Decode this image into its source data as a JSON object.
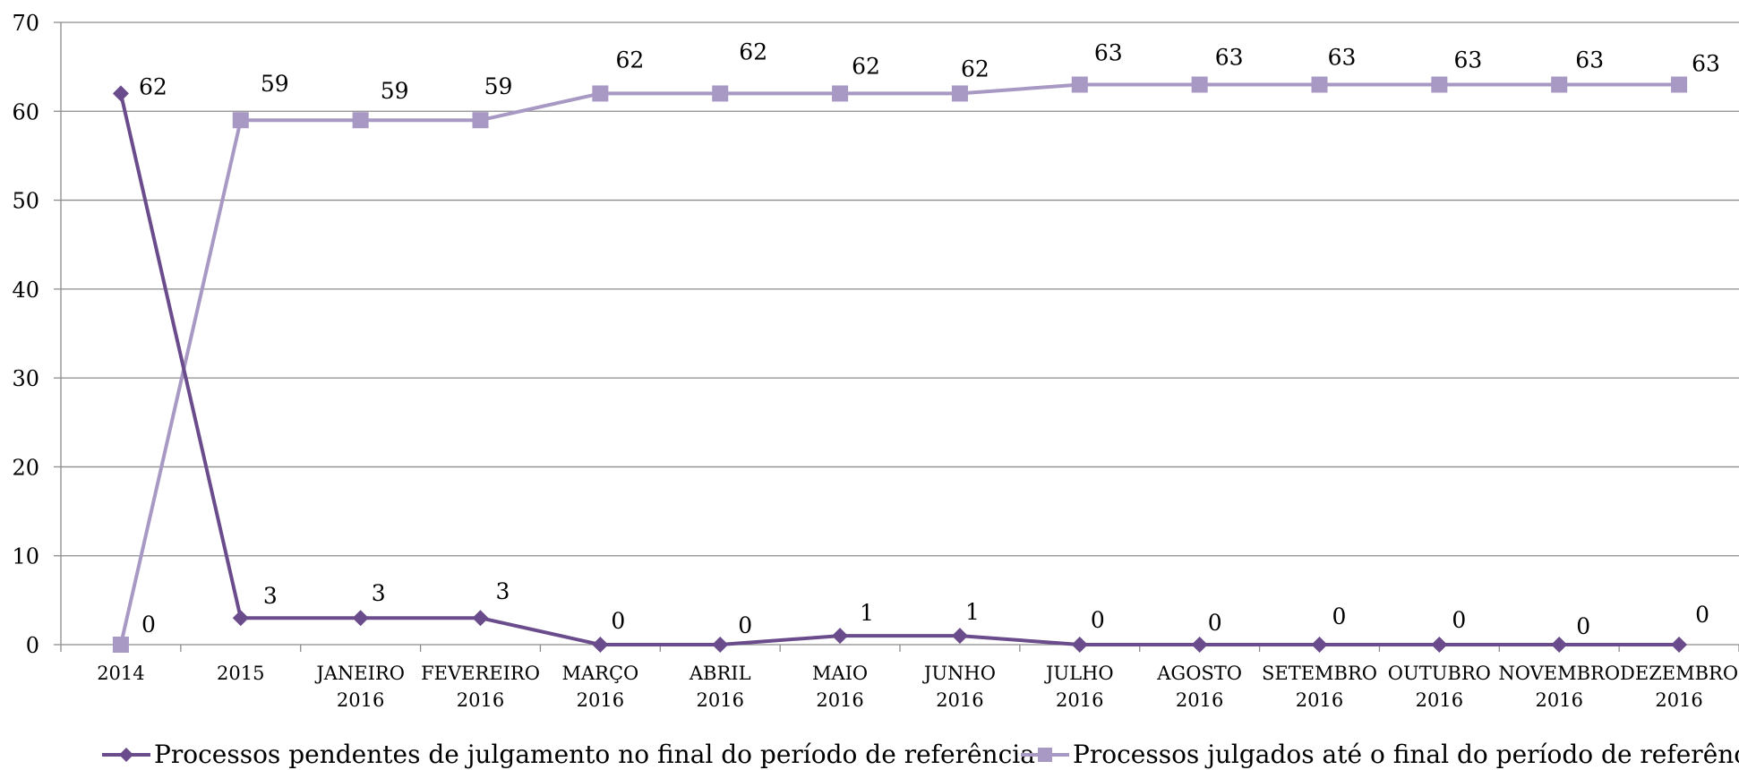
{
  "chart_data": {
    "type": "line",
    "title": "",
    "xlabel": "",
    "ylabel": "",
    "ylim": [
      0,
      70
    ],
    "yticks": [
      0,
      10,
      20,
      30,
      40,
      50,
      60,
      70
    ],
    "grid": true,
    "legend_position": "bottom",
    "categories": [
      [
        "2014"
      ],
      [
        "2015"
      ],
      [
        "JANEIRO",
        "2016"
      ],
      [
        "FEVEREIRO",
        "2016"
      ],
      [
        "MARÇO",
        "2016"
      ],
      [
        "ABRIL",
        "2016"
      ],
      [
        "MAIO",
        "2016"
      ],
      [
        "JUNHO",
        "2016"
      ],
      [
        "JULHO",
        "2016"
      ],
      [
        "AGOSTO",
        "2016"
      ],
      [
        "SETEMBRO",
        "2016"
      ],
      [
        "OUTUBRO",
        "2016"
      ],
      [
        "NOVEMBRO",
        "2016"
      ],
      [
        "DEZEMBRO",
        "2016"
      ]
    ],
    "series": [
      {
        "name": "Processos pendentes de julgamento no final do período de referência",
        "marker": "diamond",
        "color": "#6a4c8c",
        "values": [
          62,
          3,
          3,
          3,
          0,
          0,
          1,
          1,
          0,
          0,
          0,
          0,
          0,
          0
        ]
      },
      {
        "name": "Processos julgados até o final do período de referência",
        "marker": "square",
        "color": "#a898c4",
        "values": [
          0,
          59,
          59,
          59,
          62,
          62,
          62,
          62,
          63,
          63,
          63,
          63,
          63,
          63
        ]
      }
    ]
  }
}
